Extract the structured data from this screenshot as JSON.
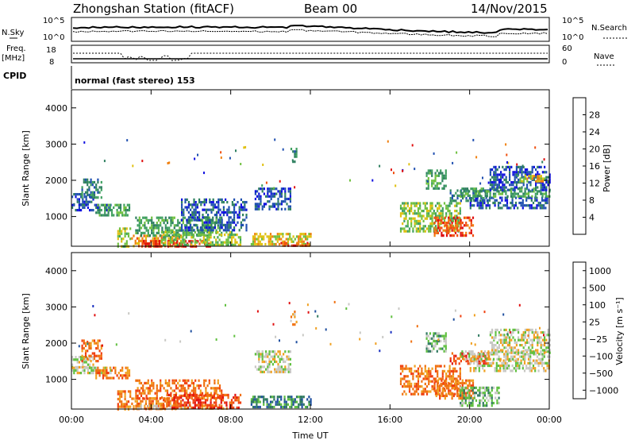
{
  "header": {
    "station": "Zhongshan Station (fitACF)",
    "beam": "Beam 00",
    "date": "14/Nov/2015"
  },
  "summary": {
    "nsky_label": "N.Sky",
    "nsearch_label": "N.Search",
    "freq_label_1": "Freq.",
    "freq_label_2": "[MHz]",
    "nave_label": "Nave",
    "cpid_label": "CPID",
    "nsky_ticks": [
      "10^5",
      "10^0"
    ],
    "nsearch_ticks": [
      "10^5",
      "10^0"
    ],
    "freq_ticks": [
      "18",
      "8"
    ],
    "nave_ticks": [
      "60",
      "0"
    ],
    "cpid_text": "normal (fast stereo) 153"
  },
  "colors": {
    "power": [
      "#1010e0",
      "#2050b0",
      "#2f8060",
      "#40a060",
      "#70c040",
      "#e0c010",
      "#f08010",
      "#f05010",
      "#e01010"
    ],
    "velocity": [
      "#1a30c0",
      "#2050a0",
      "#307a60",
      "#60c040",
      "#c8c8c4",
      "#f0a020",
      "#f07010",
      "#f04010",
      "#e01010"
    ]
  },
  "chart_data": [
    {
      "type": "heatmap",
      "name": "power",
      "ylabel": "Slant Range [km]",
      "ylim": [
        180,
        4500
      ],
      "yticks": [
        1000,
        2000,
        3000,
        4000
      ],
      "xlim": [
        0,
        24
      ],
      "colorbar": {
        "label": "Power [dB]",
        "range": [
          0,
          30
        ],
        "ticks": [
          "4",
          "8",
          "12",
          "16",
          "20",
          "24",
          "28"
        ]
      },
      "regions": [
        {
          "t": [
            0.0,
            1.1
          ],
          "r": [
            1350,
            1650
          ],
          "level": 1
        },
        {
          "t": [
            0.5,
            1.5
          ],
          "r": [
            1500,
            2050
          ],
          "level": 2
        },
        {
          "t": [
            0.0,
            2.0
          ],
          "r": [
            1150,
            1350
          ],
          "level": 1
        },
        {
          "t": [
            1.2,
            2.9
          ],
          "r": [
            1050,
            1350
          ],
          "level": 3
        },
        {
          "t": [
            2.3,
            3.0
          ],
          "r": [
            180,
            700
          ],
          "level": 4
        },
        {
          "t": [
            3.0,
            5.5
          ],
          "r": [
            180,
            500
          ],
          "level": 6
        },
        {
          "t": [
            3.5,
            7.0
          ],
          "r": [
            180,
            350
          ],
          "level": 8
        },
        {
          "t": [
            3.2,
            7.5
          ],
          "r": [
            450,
            1000
          ],
          "level": 3
        },
        {
          "t": [
            4.5,
            8.5
          ],
          "r": [
            180,
            600
          ],
          "level": 4
        },
        {
          "t": [
            5.5,
            8.8
          ],
          "r": [
            600,
            1500
          ],
          "level": 1
        },
        {
          "t": [
            9.0,
            12.0
          ],
          "r": [
            250,
            550
          ],
          "level": 5
        },
        {
          "t": [
            10.5,
            12.0
          ],
          "r": [
            180,
            300
          ],
          "level": 7
        },
        {
          "t": [
            9.2,
            11.0
          ],
          "r": [
            1200,
            1800
          ],
          "level": 1
        },
        {
          "t": [
            11.0,
            11.3
          ],
          "r": [
            2500,
            2900
          ],
          "level": 2
        },
        {
          "t": [
            16.5,
            19.5
          ],
          "r": [
            600,
            1400
          ],
          "level": 4
        },
        {
          "t": [
            17.8,
            18.8
          ],
          "r": [
            1800,
            2300
          ],
          "level": 3
        },
        {
          "t": [
            18.2,
            20.2
          ],
          "r": [
            500,
            1000
          ],
          "level": 7
        },
        {
          "t": [
            19.0,
            21.0
          ],
          "r": [
            1400,
            1750
          ],
          "level": 2
        },
        {
          "t": [
            20.0,
            24.0
          ],
          "r": [
            1250,
            1550
          ],
          "level": 1
        },
        {
          "t": [
            19.5,
            24.0
          ],
          "r": [
            1550,
            1800
          ],
          "level": 3
        },
        {
          "t": [
            21.0,
            24.0
          ],
          "r": [
            1700,
            2400
          ],
          "level": 1
        },
        {
          "t": [
            22.5,
            23.8
          ],
          "r": [
            1950,
            2150
          ],
          "level": 5
        }
      ]
    },
    {
      "type": "heatmap",
      "name": "velocity",
      "ylabel": "Slant Range [km]",
      "xlabel": "Time UT",
      "ylim": [
        180,
        4500
      ],
      "yticks": [
        1000,
        2000,
        3000,
        4000
      ],
      "xlim": [
        0,
        24
      ],
      "xticks": [
        "00:00",
        "04:00",
        "08:00",
        "12:00",
        "16:00",
        "20:00",
        "00:00"
      ],
      "colorbar": {
        "label": "Velocity [m s⁻¹]",
        "ticks": [
          "1000",
          "500",
          "100",
          "25",
          "−25",
          "−100",
          "−500",
          "−1000"
        ]
      },
      "regions": [
        {
          "t": [
            0.0,
            1.1
          ],
          "r": [
            1350,
            1650
          ],
          "level": 4
        },
        {
          "t": [
            0.5,
            1.5
          ],
          "r": [
            1500,
            2100
          ],
          "level": 6
        },
        {
          "t": [
            0.0,
            2.0
          ],
          "r": [
            1150,
            1350
          ],
          "level": 4
        },
        {
          "t": [
            1.2,
            2.9
          ],
          "r": [
            1050,
            1350
          ],
          "level": 6
        },
        {
          "t": [
            2.3,
            3.0
          ],
          "r": [
            180,
            700
          ],
          "level": 6
        },
        {
          "t": [
            3.0,
            5.5
          ],
          "r": [
            180,
            500
          ],
          "level": 6
        },
        {
          "t": [
            3.2,
            8.0
          ],
          "r": [
            180,
            300
          ],
          "level": 5
        },
        {
          "t": [
            3.2,
            7.5
          ],
          "r": [
            450,
            1000
          ],
          "level": 6
        },
        {
          "t": [
            4.5,
            8.5
          ],
          "r": [
            180,
            600
          ],
          "level": 7
        },
        {
          "t": [
            9.0,
            12.0
          ],
          "r": [
            250,
            550
          ],
          "level": 2
        },
        {
          "t": [
            9.2,
            11.0
          ],
          "r": [
            1200,
            1800
          ],
          "level": 4
        },
        {
          "t": [
            11.0,
            11.3
          ],
          "r": [
            2500,
            2900
          ],
          "level": 5
        },
        {
          "t": [
            16.5,
            19.5
          ],
          "r": [
            600,
            1400
          ],
          "level": 6
        },
        {
          "t": [
            17.8,
            18.8
          ],
          "r": [
            1800,
            2300
          ],
          "level": 3
        },
        {
          "t": [
            18.2,
            20.2
          ],
          "r": [
            500,
            1000
          ],
          "level": 6
        },
        {
          "t": [
            19.5,
            21.5
          ],
          "r": [
            250,
            800
          ],
          "level": 3
        },
        {
          "t": [
            19.0,
            21.0
          ],
          "r": [
            1400,
            1750
          ],
          "level": 7
        },
        {
          "t": [
            20.0,
            24.0
          ],
          "r": [
            1250,
            1550
          ],
          "level": 4
        },
        {
          "t": [
            19.5,
            24.0
          ],
          "r": [
            1550,
            1800
          ],
          "level": 4
        },
        {
          "t": [
            21.0,
            24.0
          ],
          "r": [
            1700,
            2400
          ],
          "level": 4
        }
      ]
    }
  ]
}
